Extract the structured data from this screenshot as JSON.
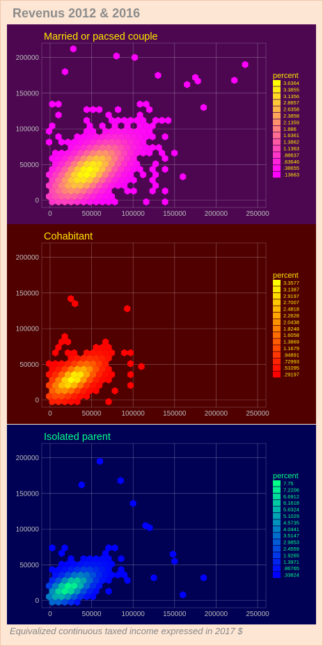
{
  "title": "Revenus 2012 & 2016",
  "caption": "Equivalized continuous taxed income expressed in 2017 $",
  "chart_data": [
    {
      "type": "hexbin",
      "title": "Married or pacsed couple",
      "background": "#4c0750",
      "title_color": "#ffe500",
      "xlim": [
        -10000,
        260000
      ],
      "ylim": [
        -10000,
        220000
      ],
      "x_ticks": [
        0,
        50000,
        100000,
        150000,
        200000,
        250000
      ],
      "y_ticks": [
        0,
        50000,
        100000,
        150000,
        200000
      ],
      "grid": true,
      "legend": {
        "title": "percent",
        "position": "right",
        "values": [
          "3.6364",
          "3.3855",
          "3.1356",
          "2.8857",
          "2.6358",
          "2.3858",
          "2.1359",
          "1.886",
          "1.6361",
          "1.3862",
          "1.1363",
          ".88637",
          ".63646",
          ".38655",
          ".13663"
        ],
        "color_low": "#ff00ff",
        "color_high": "#ffff00"
      },
      "centroid": [
        45000,
        40000
      ],
      "spread": [
        45000,
        42000
      ],
      "extent": [
        150000,
        140000
      ],
      "outliers": [
        [
          28000,
          212000
        ],
        [
          80000,
          202000
        ],
        [
          18000,
          180000
        ],
        [
          235000,
          190000
        ],
        [
          175000,
          172000
        ],
        [
          178000,
          167000
        ],
        [
          222000,
          168000
        ],
        [
          165000,
          162000
        ],
        [
          185000,
          130000
        ],
        [
          160000,
          33000
        ],
        [
          102000,
          200000
        ],
        [
          130000,
          175000
        ]
      ]
    },
    {
      "type": "hexbin",
      "title": "Cohabitant",
      "background": "#510000",
      "title_color": "#ffe500",
      "xlim": [
        -10000,
        260000
      ],
      "ylim": [
        -10000,
        220000
      ],
      "x_ticks": [
        0,
        50000,
        100000,
        150000,
        200000,
        250000
      ],
      "y_ticks": [
        0,
        50000,
        100000,
        150000,
        200000
      ],
      "grid": true,
      "legend": {
        "title": "percent",
        "position": "right",
        "values": [
          "3.3577",
          "3.1387",
          "2.9197",
          "2.7007",
          "2.4818",
          "2.2628",
          "2.0438",
          "1.8248",
          "1.6058",
          "1.3869",
          "1.1679",
          ".94891",
          ".72993",
          ".51095",
          ".29197"
        ],
        "color_low": "#ff0000",
        "color_high": "#ffff00"
      },
      "centroid": [
        28000,
        30000
      ],
      "spread": [
        30000,
        26000
      ],
      "extent": [
        100000,
        90000
      ],
      "outliers": [
        [
          25000,
          142000
        ],
        [
          30000,
          135000
        ],
        [
          93000,
          128000
        ],
        [
          110000,
          47000
        ]
      ]
    },
    {
      "type": "hexbin",
      "title": "Isolated parent",
      "background": "#000055",
      "title_color": "#00ff88",
      "xlim": [
        -10000,
        260000
      ],
      "ylim": [
        -10000,
        220000
      ],
      "x_ticks": [
        0,
        50000,
        100000,
        150000,
        200000,
        250000
      ],
      "y_ticks": [
        0,
        50000,
        100000,
        150000,
        200000
      ],
      "grid": true,
      "legend": {
        "title": "percent",
        "position": "right",
        "values": [
          "7.75",
          "7.2206",
          "6.6912",
          "6.1618",
          "5.6324",
          "5.1029",
          "4.5735",
          "4.0441",
          "3.5147",
          "2.9853",
          "2.4559",
          "1.9265",
          "1.3971",
          ".86765",
          ".33824"
        ],
        "color_low": "#0000ff",
        "color_high": "#00ff88"
      },
      "centroid": [
        22000,
        18000
      ],
      "spread": [
        32000,
        25000
      ],
      "extent": [
        100000,
        75000
      ],
      "outliers": [
        [
          60000,
          195000
        ],
        [
          85000,
          168000
        ],
        [
          38000,
          162000
        ],
        [
          100000,
          136000
        ],
        [
          115000,
          105000
        ],
        [
          120000,
          102000
        ],
        [
          148000,
          65000
        ],
        [
          150000,
          55000
        ],
        [
          125000,
          32000
        ],
        [
          160000,
          8000
        ],
        [
          185000,
          32000
        ]
      ]
    }
  ]
}
